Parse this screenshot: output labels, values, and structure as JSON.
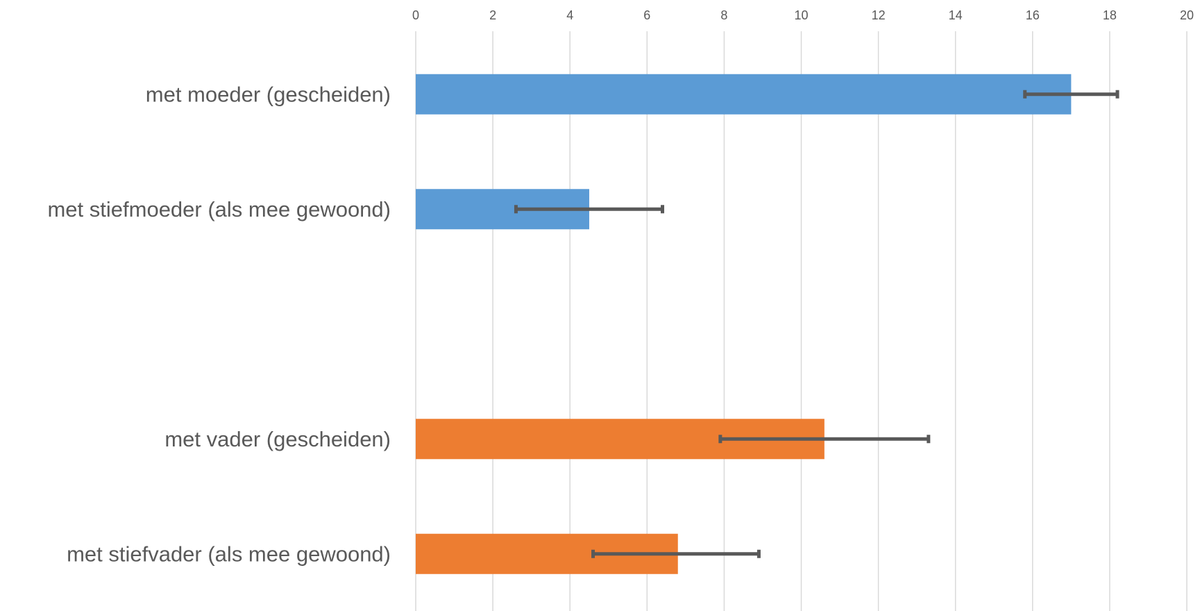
{
  "chart_data": {
    "type": "bar",
    "orientation": "horizontal",
    "xlim": [
      0,
      20
    ],
    "x_ticks": [
      "0",
      "2",
      "4",
      "6",
      "8",
      "10",
      "12",
      "14",
      "16",
      "18",
      "20"
    ],
    "x_axis_position": "top",
    "grid": true,
    "legend": "none",
    "categories": [
      "met moeder (gescheiden)",
      "met stiefmoeder (als mee gewoond)",
      "",
      "met vader (gescheiden)",
      "met stiefvader (als mee gewoond)"
    ],
    "bars": [
      {
        "label": "met moeder (gescheiden)",
        "value": 17.0,
        "error_low": 15.8,
        "error_high": 18.2,
        "color": "#5b9bd5"
      },
      {
        "label": "met stiefmoeder (als mee gewoond)",
        "value": 4.5,
        "error_low": 2.6,
        "error_high": 6.4,
        "color": "#5b9bd5"
      },
      {
        "label": "met vader (gescheiden)",
        "value": 10.6,
        "error_low": 7.9,
        "error_high": 13.3,
        "color": "#ed7d31"
      },
      {
        "label": "met stiefvader (als mee gewoond)",
        "value": 6.8,
        "error_low": 4.6,
        "error_high": 8.9,
        "color": "#ed7d31"
      }
    ],
    "colors": {
      "mother_series": "#5b9bd5",
      "father_series": "#ed7d31",
      "error_bar": "#595959",
      "grid": "#d9d9d9",
      "text": "#595959"
    }
  }
}
